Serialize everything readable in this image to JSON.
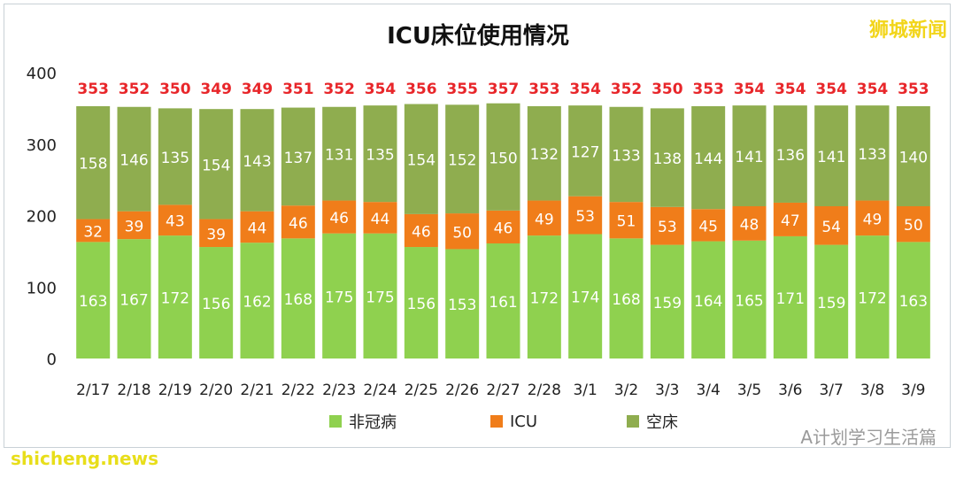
{
  "header": {
    "title": "ICU床位使用情况",
    "brand": "狮城新闻"
  },
  "watermarks": {
    "left": "shicheng.news",
    "right": "A计划学习生活篇"
  },
  "colors": {
    "non_covid": "#8fd14f",
    "icu": "#f07d1a",
    "empty": "#8fad4f",
    "total_label": "#e8262a"
  },
  "chart_data": {
    "type": "bar",
    "stacked": true,
    "title": "ICU床位使用情况",
    "categories": [
      "2/17",
      "2/18",
      "2/19",
      "2/20",
      "2/21",
      "2/22",
      "2/23",
      "2/24",
      "2/25",
      "2/26",
      "2/27",
      "2/28",
      "3/1",
      "3/2",
      "3/3",
      "3/4",
      "3/5",
      "3/6",
      "3/7",
      "3/8",
      "3/9"
    ],
    "series": [
      {
        "name": "非冠病",
        "values": [
          163,
          167,
          172,
          156,
          162,
          168,
          175,
          175,
          156,
          153,
          161,
          172,
          174,
          168,
          159,
          164,
          165,
          171,
          159,
          172,
          163
        ]
      },
      {
        "name": "ICU",
        "values": [
          32,
          39,
          43,
          39,
          44,
          46,
          46,
          44,
          46,
          50,
          46,
          49,
          53,
          51,
          53,
          45,
          48,
          47,
          54,
          49,
          50
        ]
      },
      {
        "name": "空床",
        "values": [
          158,
          146,
          135,
          154,
          143,
          137,
          131,
          135,
          154,
          152,
          150,
          132,
          127,
          133,
          138,
          144,
          141,
          136,
          141,
          133,
          140
        ]
      }
    ],
    "totals": [
      353,
      352,
      350,
      349,
      349,
      351,
      352,
      354,
      356,
      355,
      357,
      353,
      354,
      352,
      350,
      353,
      354,
      354,
      354,
      354,
      353
    ],
    "ylim": [
      0,
      400
    ],
    "yticks": [
      0,
      100,
      200,
      300,
      400
    ],
    "xlabel": "",
    "ylabel": "",
    "grid": false,
    "legend_position": "bottom"
  }
}
